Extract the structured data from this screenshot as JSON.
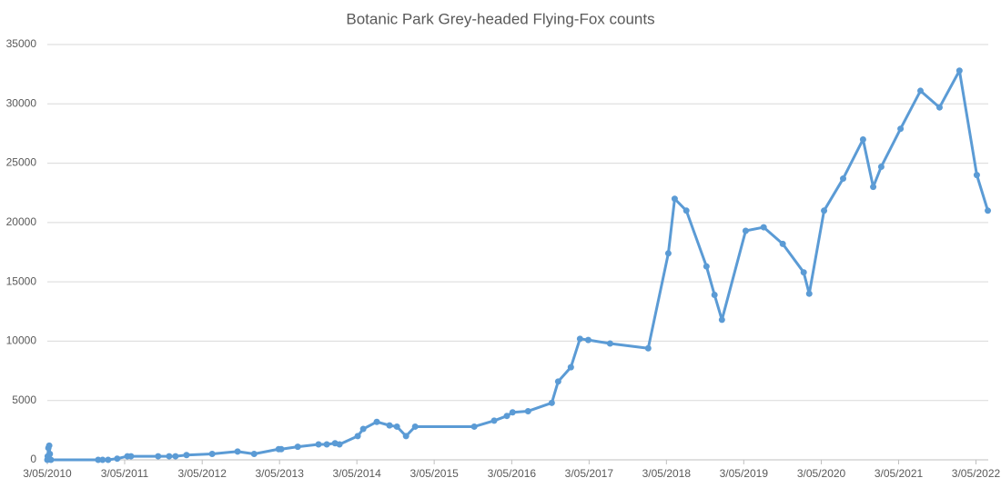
{
  "chart_data": {
    "type": "line",
    "title": "Botanic Park Grey-headed Flying-Fox counts",
    "color": "#5b9bd5",
    "grid": true,
    "x": [
      "2010-05-03",
      "2010-05-05",
      "2010-05-08",
      "2010-05-12",
      "2010-05-15",
      "2010-05-20",
      "2010-12-29",
      "2011-01-19",
      "2011-02-14",
      "2011-03-29",
      "2011-05-16",
      "2011-06-02",
      "2011-10-08",
      "2011-11-29",
      "2011-12-29",
      "2012-02-19",
      "2012-06-19",
      "2012-10-17",
      "2013-01-03",
      "2013-04-29",
      "2013-05-11",
      "2013-07-28",
      "2013-11-03",
      "2013-12-12",
      "2014-01-20",
      "2014-02-10",
      "2014-05-07",
      "2014-06-02",
      "2014-08-05",
      "2014-10-04",
      "2014-11-08",
      "2014-12-21",
      "2015-02-02",
      "2015-11-08",
      "2016-02-10",
      "2016-04-10",
      "2016-05-07",
      "2016-07-19",
      "2016-11-08",
      "2016-12-08",
      "2017-02-06",
      "2017-03-21",
      "2017-04-29",
      "2017-08-10",
      "2018-02-06",
      "2018-05-12",
      "2018-06-11",
      "2018-08-05",
      "2018-11-08",
      "2018-12-16",
      "2019-01-20",
      "2019-05-12",
      "2019-08-05",
      "2019-11-03",
      "2020-02-10",
      "2020-03-07",
      "2020-05-16",
      "2020-08-14",
      "2020-11-16",
      "2021-01-03",
      "2021-02-10",
      "2021-05-12",
      "2021-08-14",
      "2021-11-12",
      "2022-02-14",
      "2022-05-07",
      "2022-06-28"
    ],
    "values": [
      0,
      300,
      1000,
      1200,
      500,
      0,
      0,
      0,
      0,
      100,
      300,
      300,
      300,
      300,
      300,
      400,
      500,
      700,
      500,
      900,
      900,
      1100,
      1300,
      1300,
      1400,
      1300,
      2000,
      2600,
      3200,
      2900,
      2800,
      2000,
      2800,
      2800,
      3300,
      3700,
      4000,
      4100,
      4800,
      6600,
      7800,
      10200,
      10100,
      9800,
      9400,
      17400,
      22000,
      21000,
      16300,
      13900,
      11800,
      19300,
      19600,
      18200,
      15800,
      14000,
      21000,
      23700,
      27000,
      23000,
      24700,
      27900,
      31100,
      29700,
      32800,
      24000,
      21000
    ],
    "xlim": [
      "2010-05-03",
      "2022-06-30"
    ],
    "xticks": [
      {
        "value": "2010-05-03",
        "label": "3/05/2010"
      },
      {
        "value": "2011-05-03",
        "label": "3/05/2011"
      },
      {
        "value": "2012-05-03",
        "label": "3/05/2012"
      },
      {
        "value": "2013-05-03",
        "label": "3/05/2013"
      },
      {
        "value": "2014-05-03",
        "label": "3/05/2014"
      },
      {
        "value": "2015-05-03",
        "label": "3/05/2015"
      },
      {
        "value": "2016-05-03",
        "label": "3/05/2016"
      },
      {
        "value": "2017-05-03",
        "label": "3/05/2017"
      },
      {
        "value": "2018-05-03",
        "label": "3/05/2018"
      },
      {
        "value": "2019-05-03",
        "label": "3/05/2019"
      },
      {
        "value": "2020-05-03",
        "label": "3/05/2020"
      },
      {
        "value": "2021-05-03",
        "label": "3/05/2021"
      },
      {
        "value": "2022-05-03",
        "label": "3/05/2022"
      }
    ],
    "ylim": [
      0,
      35000
    ],
    "yticks": [
      0,
      5000,
      10000,
      15000,
      20000,
      25000,
      30000,
      35000
    ]
  }
}
